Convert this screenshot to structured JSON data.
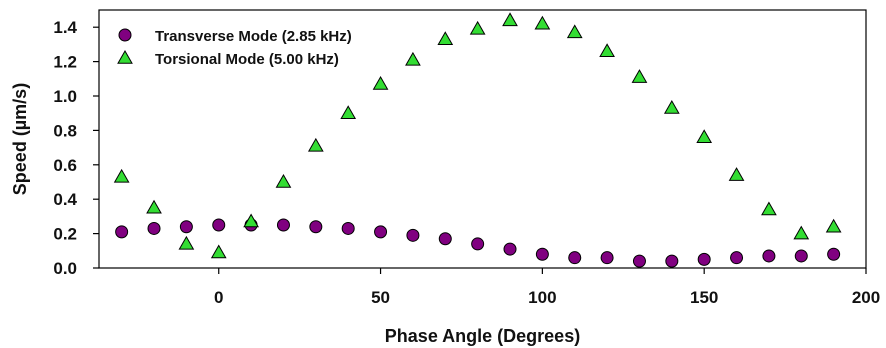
{
  "chart_data": {
    "type": "scatter",
    "xlabel": "Phase Angle (Degrees)",
    "ylabel": "Speed (µm/s)",
    "xlim": [
      -37,
      200
    ],
    "ylim": [
      0,
      1.5
    ],
    "xticks": [
      0,
      50,
      100,
      150,
      200
    ],
    "yticks": [
      0.0,
      0.2,
      0.4,
      0.6,
      0.8,
      1.0,
      1.2,
      1.4
    ],
    "xtick_labels": [
      "0",
      "50",
      "100",
      "150",
      "200"
    ],
    "ytick_labels": [
      "0.0",
      "0.2",
      "0.4",
      "0.6",
      "0.8",
      "1.0",
      "1.2",
      "1.4"
    ],
    "grid": false,
    "legend_position": "top-left",
    "series": [
      {
        "name": "Transverse Mode (2.85 kHz)",
        "marker": "circle",
        "color": "#800080",
        "points": [
          [
            -30,
            0.21
          ],
          [
            -20,
            0.23
          ],
          [
            -10,
            0.24
          ],
          [
            0,
            0.25
          ],
          [
            10,
            0.25
          ],
          [
            20,
            0.25
          ],
          [
            30,
            0.24
          ],
          [
            40,
            0.23
          ],
          [
            50,
            0.21
          ],
          [
            60,
            0.19
          ],
          [
            70,
            0.17
          ],
          [
            80,
            0.14
          ],
          [
            90,
            0.11
          ],
          [
            100,
            0.08
          ],
          [
            110,
            0.06
          ],
          [
            120,
            0.06
          ],
          [
            130,
            0.04
          ],
          [
            140,
            0.04
          ],
          [
            150,
            0.05
          ],
          [
            160,
            0.06
          ],
          [
            170,
            0.07
          ],
          [
            180,
            0.07
          ],
          [
            190,
            0.08
          ]
        ]
      },
      {
        "name": "Torsional Mode (5.00 kHz)",
        "marker": "triangle",
        "color": "#33dd33",
        "points": [
          [
            -30,
            0.53
          ],
          [
            -20,
            0.35
          ],
          [
            -10,
            0.14
          ],
          [
            0,
            0.09
          ],
          [
            10,
            0.27
          ],
          [
            20,
            0.5
          ],
          [
            30,
            0.71
          ],
          [
            40,
            0.9
          ],
          [
            50,
            1.07
          ],
          [
            60,
            1.21
          ],
          [
            70,
            1.33
          ],
          [
            80,
            1.39
          ],
          [
            90,
            1.44
          ],
          [
            100,
            1.42
          ],
          [
            110,
            1.37
          ],
          [
            120,
            1.26
          ],
          [
            130,
            1.11
          ],
          [
            140,
            0.93
          ],
          [
            150,
            0.76
          ],
          [
            160,
            0.54
          ],
          [
            170,
            0.34
          ],
          [
            180,
            0.2
          ],
          [
            190,
            0.24
          ]
        ]
      }
    ]
  }
}
